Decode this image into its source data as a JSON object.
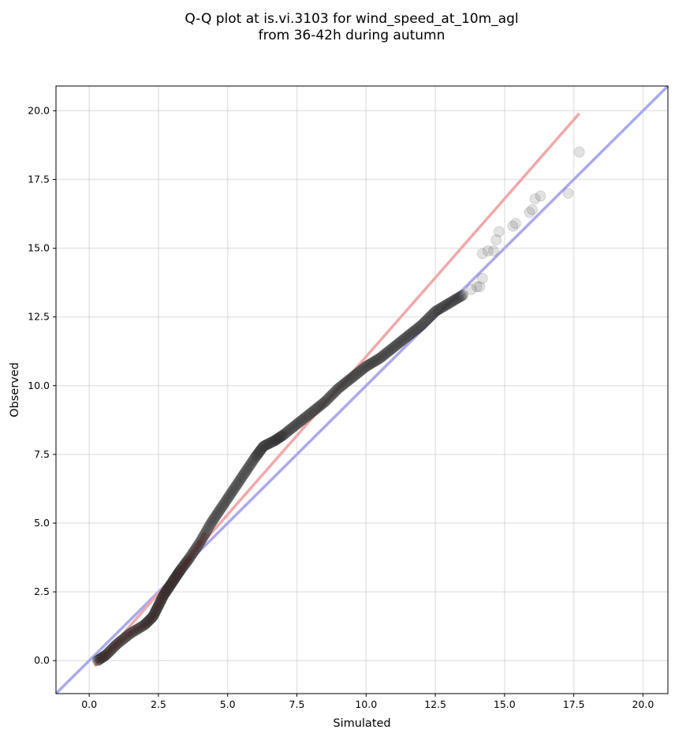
{
  "chart_data": {
    "type": "scatter",
    "title_lines": [
      "Q-Q plot at is.vi.3103 for wind_speed_at_10m_agl",
      "from 36-42h during autumn"
    ],
    "xlabel": "Simulated",
    "ylabel": "Observed",
    "xlim": [
      -1.2,
      20.9
    ],
    "ylim": [
      -1.2,
      20.9
    ],
    "xticks": [
      "0.0",
      "2.5",
      "5.0",
      "7.5",
      "10.0",
      "12.5",
      "15.0",
      "17.5",
      "20.0"
    ],
    "yticks": [
      "0.0",
      "2.5",
      "5.0",
      "7.5",
      "10.0",
      "12.5",
      "15.0",
      "17.5",
      "20.0"
    ],
    "grid": true,
    "reference_line": {
      "kind": "1:1",
      "color": "#aaaaee"
    },
    "fit_line": {
      "x": [
        0.2,
        17.7
      ],
      "y": [
        -0.2,
        19.9
      ],
      "color": "#f2a8a8"
    },
    "quantile_curve": {
      "x": [
        0.3,
        0.6,
        1.0,
        1.5,
        2.0,
        2.3,
        2.5,
        2.7,
        2.9,
        3.1,
        3.3,
        3.6,
        4.0,
        4.4,
        4.8,
        5.2,
        5.6,
        6.0,
        6.3,
        6.7,
        7.0,
        7.5,
        8.0,
        8.5,
        9.0,
        9.5,
        10.0,
        10.5,
        11.0,
        11.5,
        12.0,
        12.5,
        13.0,
        13.5
      ],
      "y": [
        0.0,
        0.2,
        0.6,
        1.0,
        1.3,
        1.6,
        2.0,
        2.4,
        2.7,
        3.0,
        3.3,
        3.7,
        4.3,
        5.0,
        5.6,
        6.2,
        6.8,
        7.4,
        7.8,
        8.0,
        8.2,
        8.6,
        9.0,
        9.4,
        9.9,
        10.3,
        10.7,
        11.0,
        11.4,
        11.8,
        12.2,
        12.7,
        13.0,
        13.3
      ]
    },
    "points_per_segment": 16,
    "tail_points": {
      "x": [
        13.8,
        14.0,
        14.1,
        14.2,
        14.2,
        14.4,
        14.6,
        14.7,
        14.8,
        15.3,
        15.4,
        15.9,
        16.0,
        16.1,
        16.3,
        17.3,
        17.7
      ],
      "y": [
        13.5,
        13.6,
        13.6,
        13.9,
        14.8,
        14.9,
        14.9,
        15.3,
        15.6,
        15.8,
        15.9,
        16.3,
        16.4,
        16.8,
        16.9,
        17.0,
        18.5
      ]
    },
    "marker_color": "#333333",
    "inner_marker_color": "#8b1a1a"
  }
}
